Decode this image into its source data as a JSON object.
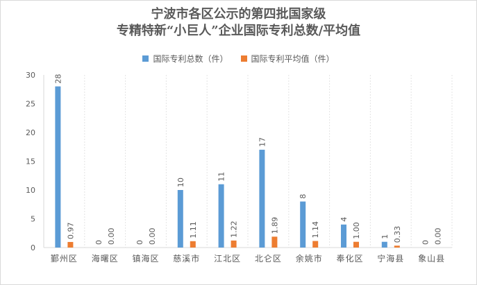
{
  "chart_data": {
    "type": "bar",
    "title_lines": [
      "宁波市各区公示的第四批国家级",
      "专精特新“小巨人”企业国际专利总数/平均值"
    ],
    "categories": [
      "鄞州区",
      "海曙区",
      "镇海区",
      "慈溪市",
      "江北区",
      "北仑区",
      "余姚市",
      "奉化区",
      "宁海县",
      "象山县"
    ],
    "series": [
      {
        "name": "国际专利总数（件）",
        "color": "#5b9bd5",
        "values": [
          28,
          0,
          0,
          10,
          11,
          17,
          8,
          4,
          1,
          0
        ],
        "labels": [
          "28",
          "0",
          "0",
          "10",
          "11",
          "17",
          "8",
          "4",
          "1",
          "0"
        ]
      },
      {
        "name": "国际专利平均值（件）",
        "color": "#ed7d31",
        "values": [
          0.97,
          0.0,
          0.0,
          1.11,
          1.22,
          1.89,
          1.14,
          1.0,
          0.33,
          0.0
        ],
        "labels": [
          "0.97",
          "0.00",
          "0.00",
          "1.11",
          "1.22",
          "1.89",
          "1.14",
          "1.00",
          "0.33",
          "0.00"
        ]
      }
    ],
    "yticks": [
      "0",
      "5",
      "10",
      "15",
      "20",
      "25",
      "30"
    ],
    "ylim": [
      0,
      30
    ],
    "grid": false,
    "legend_position": "top",
    "category_separators": true
  }
}
